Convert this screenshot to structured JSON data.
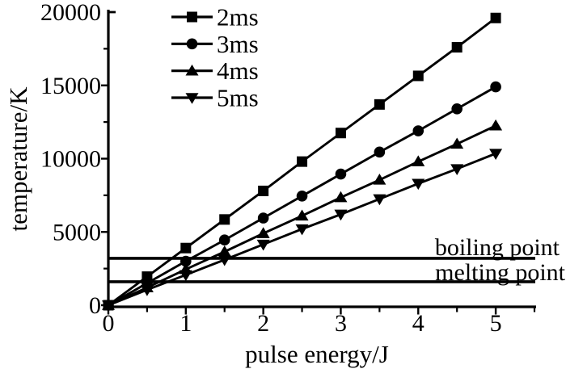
{
  "page": {
    "background": "#ffffff",
    "ink": "#000000"
  },
  "chart_data": {
    "type": "line",
    "title": "",
    "xlabel": "pulse energy/J",
    "ylabel": "temperature/K",
    "xlim": [
      0,
      5.5
    ],
    "ylim": [
      0,
      20000
    ],
    "x_major_ticks": [
      0,
      1,
      2,
      3,
      4,
      5
    ],
    "x_minor_ticks": [
      0.5,
      1.5,
      2.5,
      3.5,
      4.5,
      5.5
    ],
    "y_major_ticks": [
      0,
      5000,
      10000,
      15000,
      20000
    ],
    "y_minor_ticks": [
      2500,
      7500,
      12500,
      17500
    ],
    "grid": false,
    "legend_position": "upper-left-inside",
    "x": [
      0,
      0.5,
      1,
      1.5,
      2,
      2.5,
      3,
      3.5,
      4,
      4.5,
      5
    ],
    "series": [
      {
        "name": "2ms",
        "marker": "square",
        "values": [
          0,
          1950,
          3900,
          5850,
          7800,
          9800,
          11750,
          13700,
          15650,
          17600,
          19600
        ]
      },
      {
        "name": "3ms",
        "marker": "circle",
        "values": [
          0,
          1500,
          3000,
          4450,
          5950,
          7450,
          8950,
          10450,
          11900,
          13400,
          14900
        ]
      },
      {
        "name": "4ms",
        "marker": "triangle-up",
        "values": [
          0,
          1200,
          2450,
          3650,
          4900,
          6100,
          7350,
          8550,
          9800,
          11000,
          12250
        ]
      },
      {
        "name": "5ms",
        "marker": "triangle-down",
        "values": [
          0,
          1050,
          2070,
          3100,
          4150,
          5200,
          6200,
          7250,
          8300,
          9300,
          10350
        ]
      }
    ],
    "reference_lines": [
      {
        "label": "boiling point",
        "value": 3200
      },
      {
        "label": "melting point",
        "value": 1600
      }
    ]
  }
}
